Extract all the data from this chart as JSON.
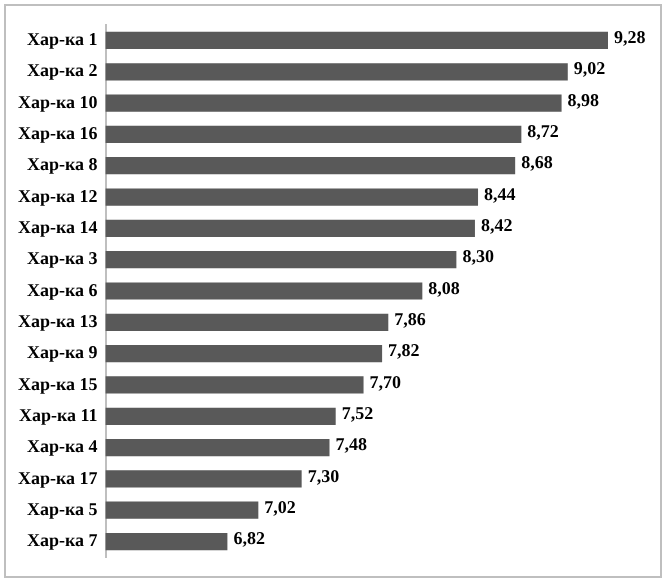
{
  "chart_data": {
    "type": "bar",
    "orientation": "horizontal",
    "categories": [
      "Хар-ка 1",
      "Хар-ка 2",
      "Хар-ка 10",
      "Хар-ка 16",
      "Хар-ка 8",
      "Хар-ка 12",
      "Хар-ка 14",
      "Хар-ка 3",
      "Хар-ка 6",
      "Хар-ка 13",
      "Хар-ка 9",
      "Хар-ка 15",
      "Хар-ка 11",
      "Хар-ка 4",
      "Хар-ка 17",
      "Хар-ка 5",
      "Хар-ка 7"
    ],
    "values": [
      9.28,
      9.02,
      8.98,
      8.72,
      8.68,
      8.44,
      8.42,
      8.3,
      8.08,
      7.86,
      7.82,
      7.7,
      7.52,
      7.48,
      7.3,
      7.02,
      6.82
    ],
    "value_labels": [
      "9,28",
      "9,02",
      "8,98",
      "8,72",
      "8,68",
      "8,44",
      "8,42",
      "8,30",
      "8,08",
      "7,86",
      "7,82",
      "7,70",
      "7,52",
      "7,48",
      "7,30",
      "7,02",
      "6,82"
    ],
    "color": "#595959",
    "tick_labels": "y",
    "grid": false,
    "legend": false
  }
}
